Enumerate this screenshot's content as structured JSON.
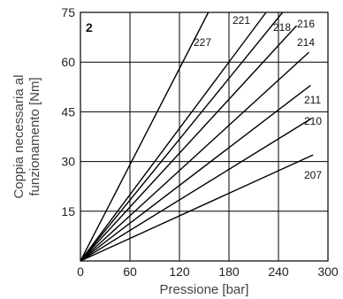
{
  "chart_data": {
    "type": "line",
    "panel_label": "2",
    "xlabel": "Pressione [bar]",
    "ylabel_lines": [
      "Coppia necessaria al",
      "funzionamento [Nm]"
    ],
    "xlim": [
      0,
      300
    ],
    "ylim": [
      0,
      75
    ],
    "xticks": [
      0,
      60,
      120,
      180,
      240,
      300
    ],
    "yticks": [
      15,
      30,
      45,
      60,
      75
    ],
    "ytick_labels": [
      "15",
      "30",
      "45",
      "60",
      "75"
    ],
    "grid": true,
    "line_color": "#000000",
    "series": [
      {
        "name": "227",
        "x": [
          0,
          155
        ],
        "y": [
          0,
          75
        ]
      },
      {
        "name": "221",
        "x": [
          0,
          225
        ],
        "y": [
          0,
          75
        ]
      },
      {
        "name": "218",
        "x": [
          0,
          245
        ],
        "y": [
          0,
          75
        ]
      },
      {
        "name": "216",
        "x": [
          0,
          262
        ],
        "y": [
          0,
          71
        ]
      },
      {
        "name": "214",
        "x": [
          0,
          277
        ],
        "y": [
          0,
          63
        ]
      },
      {
        "name": "211",
        "x": [
          0,
          279
        ],
        "y": [
          0,
          53
        ]
      },
      {
        "name": "210",
        "x": [
          0,
          280
        ],
        "y": [
          0,
          43
        ]
      },
      {
        "name": "207",
        "x": [
          0,
          282
        ],
        "y": [
          0,
          32
        ]
      }
    ]
  }
}
